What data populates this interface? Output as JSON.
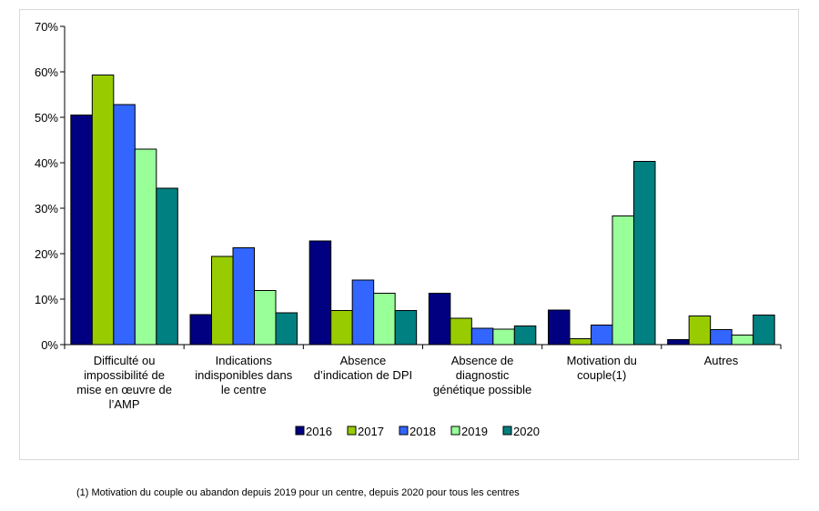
{
  "chart_data": {
    "type": "bar",
    "title": "",
    "xlabel": "",
    "ylabel": "",
    "ylim": [
      0,
      70
    ],
    "y_ticks": [
      "0%",
      "10%",
      "20%",
      "30%",
      "40%",
      "50%",
      "60%",
      "70%"
    ],
    "categories": [
      [
        "Difficulté ou",
        "impossibilité de",
        "mise en œuvre de",
        "l’AMP"
      ],
      [
        "Indications",
        "indisponibles dans",
        "le centre"
      ],
      [
        "Absence",
        "d’indication de DPI"
      ],
      [
        "Absence de",
        "diagnostic",
        "génétique possible"
      ],
      [
        "Motivation du",
        "couple(1)"
      ],
      [
        "Autres"
      ]
    ],
    "series": [
      {
        "name": "2016",
        "color": "#000080",
        "values": [
          50.5,
          6.6,
          22.8,
          11.3,
          7.6,
          1.1
        ]
      },
      {
        "name": "2017",
        "color": "#99cc00",
        "values": [
          59.3,
          19.4,
          7.5,
          5.8,
          1.3,
          6.3
        ]
      },
      {
        "name": "2018",
        "color": "#3366ff",
        "values": [
          52.8,
          21.3,
          14.2,
          3.6,
          4.3,
          3.3
        ]
      },
      {
        "name": "2019",
        "color": "#99ff99",
        "values": [
          43.0,
          11.9,
          11.3,
          3.4,
          28.3,
          2.1
        ]
      },
      {
        "name": "2020",
        "color": "#008080",
        "values": [
          34.4,
          7.0,
          7.5,
          4.1,
          40.3,
          6.5
        ]
      }
    ],
    "grid": false,
    "legend_position": "bottom"
  },
  "footnote": "(1) Motivation du couple ou abandon depuis 2019 pour un centre, depuis 2020 pour tous les centres"
}
